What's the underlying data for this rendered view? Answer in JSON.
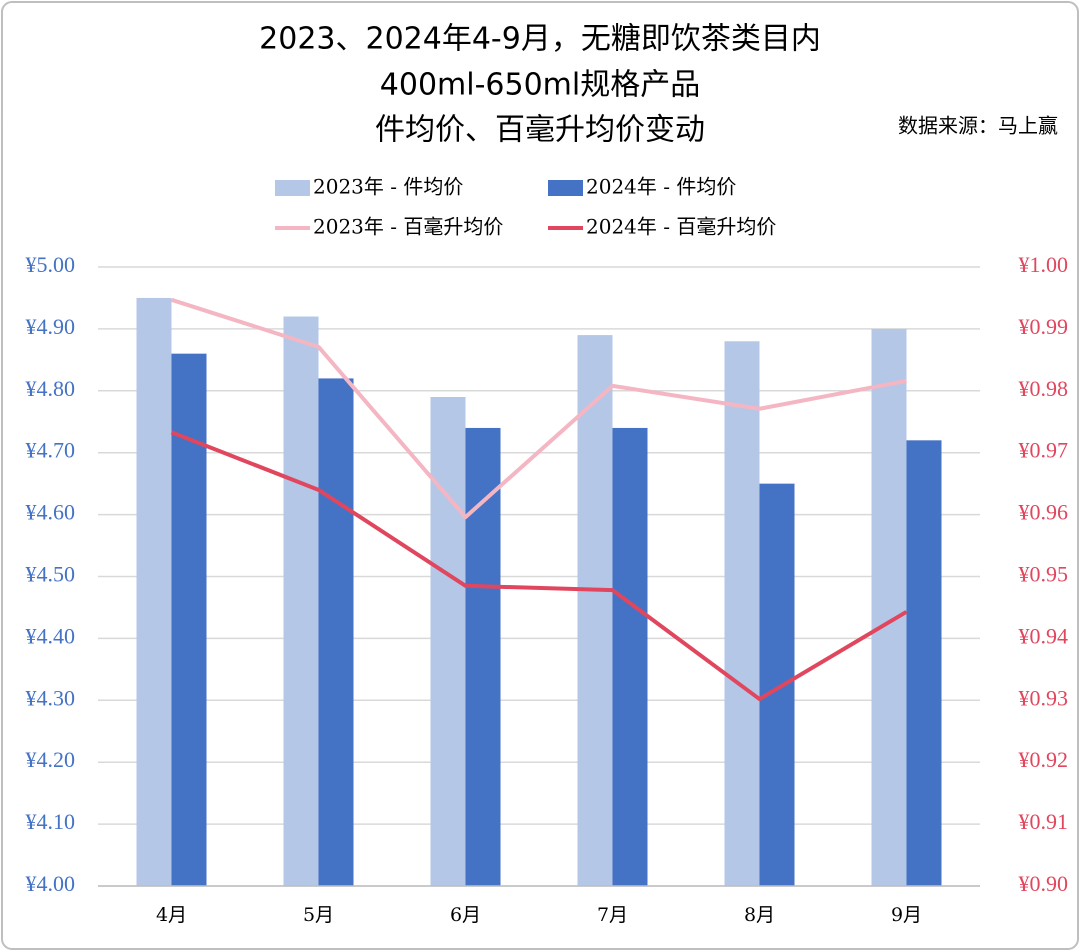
{
  "chart_data": {
    "type": "bar",
    "title": [
      "2023、2024年4-9月，无糖即饮茶类目内",
      "400ml-650ml规格产品",
      "件均价、百毫升均价变动"
    ],
    "source": "数据来源：马上赢",
    "categories": [
      "4月",
      "5月",
      "6月",
      "7月",
      "8月",
      "9月"
    ],
    "series": [
      {
        "name": "2023年 - 件均价",
        "type": "bar",
        "color": "#b4c7e7",
        "values": [
          4.95,
          4.92,
          4.79,
          4.89,
          4.88,
          4.9
        ]
      },
      {
        "name": "2024年 - 件均价",
        "type": "bar",
        "color": "#4472c4",
        "values": [
          4.86,
          4.82,
          4.74,
          4.74,
          4.65,
          4.72
        ]
      },
      {
        "name": "2023年 - 百毫升均价",
        "type": "line",
        "axis": "y2",
        "color": "#f4b6c2",
        "values": [
          0.9947,
          0.9871,
          0.9596,
          0.9808,
          0.9771,
          0.9816
        ]
      },
      {
        "name": "2024年 - 百毫升均价",
        "type": "line",
        "axis": "y2",
        "color": "#e0475e",
        "values": [
          0.9733,
          0.964,
          0.9485,
          0.9478,
          0.9302,
          0.9443
        ]
      }
    ],
    "ylim": [
      4.0,
      5.0
    ],
    "yticks": [
      {
        "value": 4.0,
        "label": "¥4.00"
      },
      {
        "value": 4.1,
        "label": "¥4.10"
      },
      {
        "value": 4.2,
        "label": "¥4.20"
      },
      {
        "value": 4.3,
        "label": "¥4.30"
      },
      {
        "value": 4.4,
        "label": "¥4.40"
      },
      {
        "value": 4.5,
        "label": "¥4.50"
      },
      {
        "value": 4.6,
        "label": "¥4.60"
      },
      {
        "value": 4.7,
        "label": "¥4.70"
      },
      {
        "value": 4.8,
        "label": "¥4.80"
      },
      {
        "value": 4.9,
        "label": "¥4.90"
      },
      {
        "value": 5.0,
        "label": "¥5.00"
      }
    ],
    "y2lim": [
      0.9,
      1.0
    ],
    "y2ticks": [
      {
        "value": 0.9,
        "label": "¥0.90"
      },
      {
        "value": 0.91,
        "label": "¥0.91"
      },
      {
        "value": 0.92,
        "label": "¥0.92"
      },
      {
        "value": 0.93,
        "label": "¥0.93"
      },
      {
        "value": 0.94,
        "label": "¥0.94"
      },
      {
        "value": 0.95,
        "label": "¥0.95"
      },
      {
        "value": 0.96,
        "label": "¥0.96"
      },
      {
        "value": 0.97,
        "label": "¥0.97"
      },
      {
        "value": 0.98,
        "label": "¥0.98"
      },
      {
        "value": 0.99,
        "label": "¥0.99"
      },
      {
        "value": 1.0,
        "label": "¥1.00"
      }
    ],
    "ytick_color": "#4472c4",
    "y2tick_color": "#e0475e",
    "grid": true
  }
}
